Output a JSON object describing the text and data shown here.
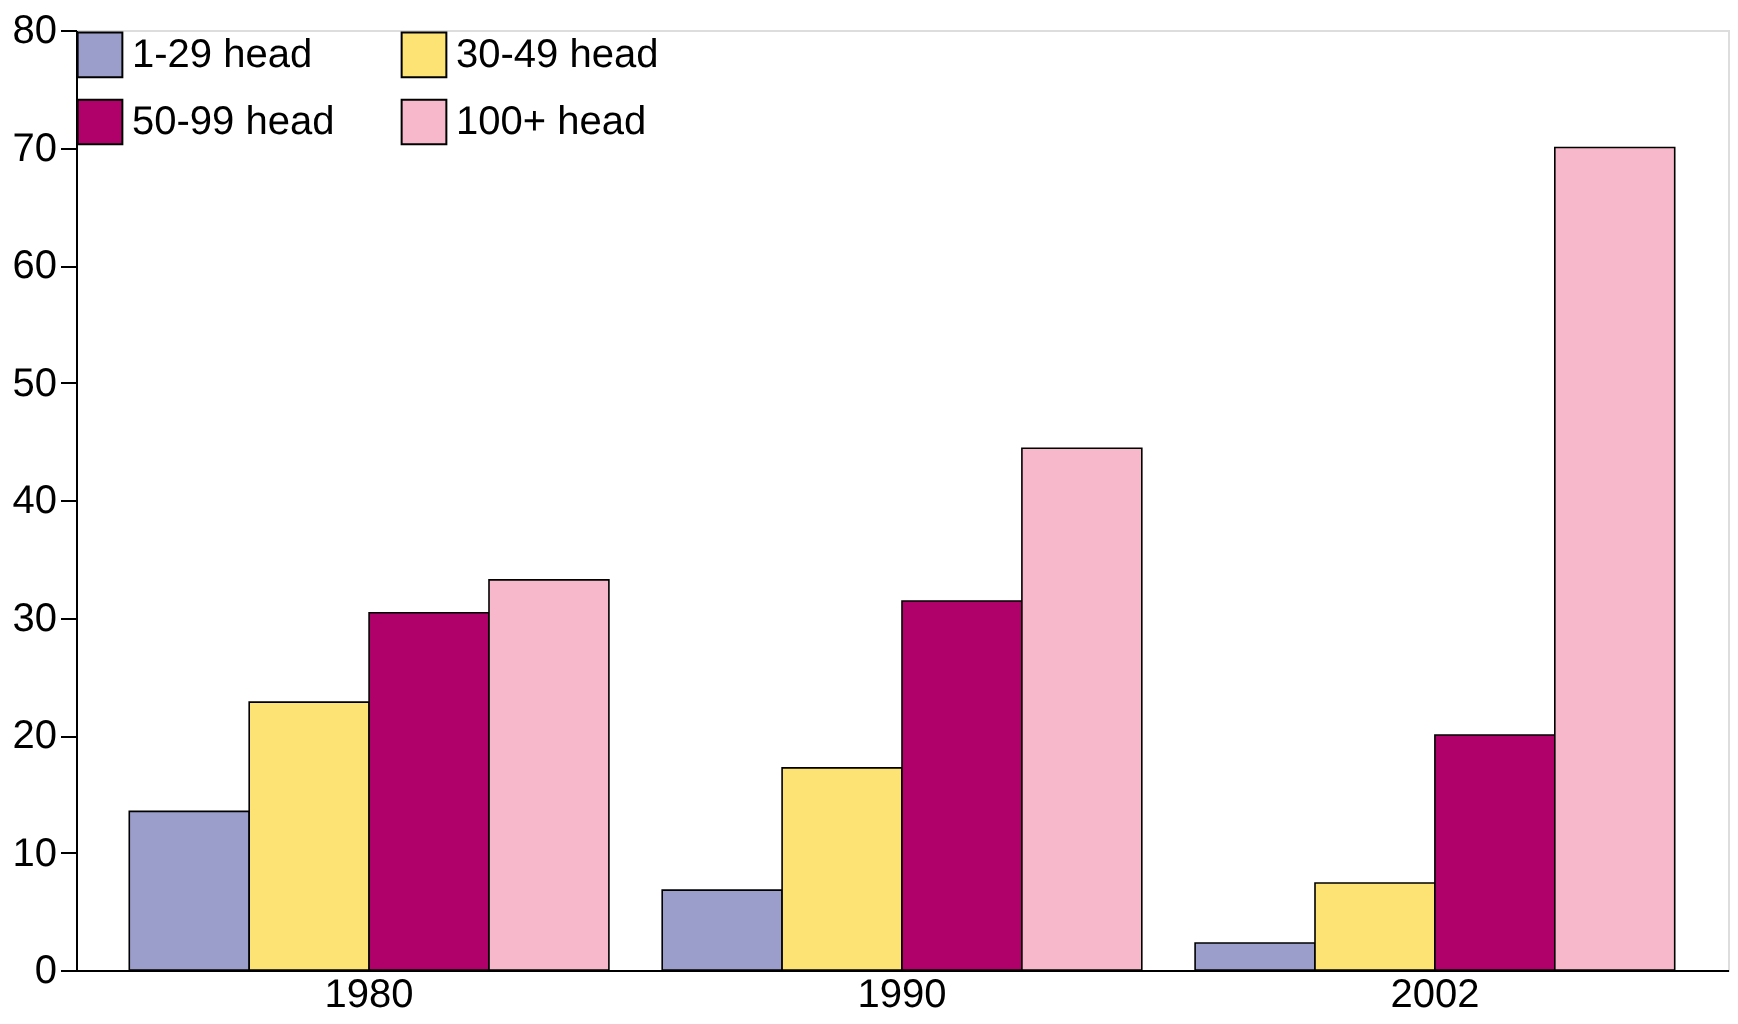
{
  "chart_data": {
    "type": "bar",
    "categories": [
      "1980",
      "1990",
      "2002"
    ],
    "series": [
      {
        "name": "1-29 head",
        "color": "#9b9ecb",
        "values": [
          13.5,
          6.8,
          2.3
        ]
      },
      {
        "name": "30-49 head",
        "color": "#fde374",
        "values": [
          22.8,
          17.2,
          7.4
        ]
      },
      {
        "name": "50-99 head",
        "color": "#b0006a",
        "values": [
          30.4,
          31.4,
          20.0
        ]
      },
      {
        "name": "100+ head",
        "color": "#f7b8cc",
        "values": [
          33.2,
          44.4,
          70.0
        ]
      }
    ],
    "ylim": [
      0,
      80
    ],
    "yticks": [
      0,
      10,
      20,
      30,
      40,
      50,
      60,
      70,
      80
    ],
    "grid": false,
    "legend": "top"
  }
}
